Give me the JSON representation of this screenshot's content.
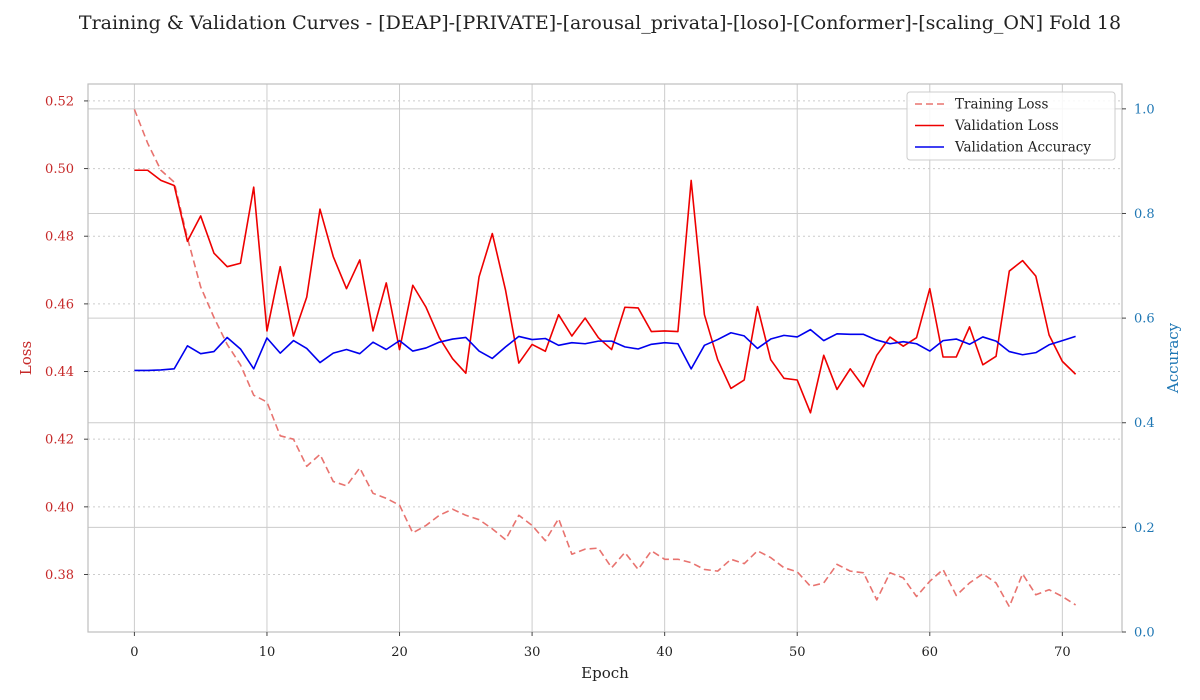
{
  "chart_data": {
    "type": "line",
    "title": "Training & Validation Curves - [DEAP]-[PRIVATE]-[arousal_privata]-[loso]-[Conformer]-[scaling_ON] Fold 18",
    "xlabel": "Epoch",
    "ylabel_left": "Loss",
    "ylabel_right": "Accuracy",
    "xlim": [
      -3.5,
      74.5
    ],
    "ylim_left": [
      0.363,
      0.525
    ],
    "ylim_right": [
      0.0,
      1.0475
    ],
    "x_ticks": [
      0,
      10,
      20,
      30,
      40,
      50,
      60,
      70
    ],
    "y_left_ticks": [
      "0.38",
      "0.40",
      "0.42",
      "0.44",
      "0.46",
      "0.48",
      "0.50",
      "0.52"
    ],
    "y_right_ticks": [
      "0.0",
      "0.2",
      "0.4",
      "0.6",
      "0.8",
      "1.0"
    ],
    "grid": true,
    "legend_position": "top-right",
    "colors": {
      "training_loss": "#e8736f",
      "validation_loss": "#ee0000",
      "validation_accuracy": "#0000ee",
      "left_axis": "#c62828",
      "right_axis": "#1f77b4",
      "grid": "#cccccc",
      "frame": "#bfbfbf"
    },
    "x": [
      0,
      1,
      2,
      3,
      4,
      5,
      6,
      7,
      8,
      9,
      10,
      11,
      12,
      13,
      14,
      15,
      16,
      17,
      18,
      19,
      20,
      21,
      22,
      23,
      24,
      25,
      26,
      27,
      28,
      29,
      30,
      31,
      32,
      33,
      34,
      35,
      36,
      37,
      38,
      39,
      40,
      41,
      42,
      43,
      44,
      45,
      46,
      47,
      48,
      49,
      50,
      51,
      52,
      53,
      54,
      55,
      56,
      57,
      58,
      59,
      60,
      61,
      62,
      63,
      64,
      65,
      66,
      67,
      68,
      69,
      70,
      71
    ],
    "series": [
      {
        "name": "Training Loss",
        "axis": "left",
        "style": "dashed",
        "values": [
          0.5175,
          0.5075,
          0.4995,
          0.496,
          0.4795,
          0.465,
          0.456,
          0.448,
          0.442,
          0.433,
          0.431,
          0.421,
          0.42,
          0.412,
          0.4155,
          0.4075,
          0.4062,
          0.4115,
          0.404,
          0.4025,
          0.4005,
          0.3923,
          0.3945,
          0.3975,
          0.3993,
          0.3975,
          0.3962,
          0.3935,
          0.3903,
          0.3975,
          0.3945,
          0.39,
          0.3965,
          0.386,
          0.3875,
          0.3878,
          0.382,
          0.3865,
          0.3815,
          0.387,
          0.3845,
          0.3845,
          0.3835,
          0.3815,
          0.381,
          0.3845,
          0.3832,
          0.387,
          0.385,
          0.382,
          0.3808,
          0.3765,
          0.3775,
          0.383,
          0.381,
          0.3805,
          0.3725,
          0.3805,
          0.379,
          0.3735,
          0.378,
          0.3815,
          0.3738,
          0.3775,
          0.3802,
          0.3775,
          0.3705,
          0.3802,
          0.374,
          0.3755,
          0.3735,
          0.371
        ]
      },
      {
        "name": "Validation Loss",
        "axis": "left",
        "style": "solid",
        "values": [
          0.4995,
          0.4995,
          0.4965,
          0.495,
          0.4785,
          0.486,
          0.475,
          0.471,
          0.472,
          0.4945,
          0.452,
          0.471,
          0.4505,
          0.462,
          0.488,
          0.474,
          0.4645,
          0.473,
          0.452,
          0.4662,
          0.4465,
          0.4655,
          0.459,
          0.45,
          0.4438,
          0.4395,
          0.468,
          0.4808,
          0.464,
          0.4425,
          0.448,
          0.446,
          0.4568,
          0.4505,
          0.4558,
          0.45,
          0.4465,
          0.459,
          0.4588,
          0.4518,
          0.452,
          0.4518,
          0.4965,
          0.4568,
          0.4435,
          0.435,
          0.4375,
          0.4592,
          0.4435,
          0.438,
          0.4375,
          0.4278,
          0.4448,
          0.4347,
          0.4408,
          0.4355,
          0.4448,
          0.4502,
          0.4475,
          0.45,
          0.4645,
          0.4443,
          0.4443,
          0.4532,
          0.442,
          0.4445,
          0.4697,
          0.4728,
          0.4682,
          0.4508,
          0.443,
          0.4392
        ]
      },
      {
        "name": "Validation Accuracy",
        "axis": "right",
        "style": "solid",
        "values": [
          0.5,
          0.5,
          0.501,
          0.503,
          0.547,
          0.532,
          0.536,
          0.563,
          0.541,
          0.503,
          0.562,
          0.533,
          0.557,
          0.542,
          0.515,
          0.533,
          0.54,
          0.532,
          0.554,
          0.54,
          0.557,
          0.537,
          0.543,
          0.554,
          0.56,
          0.563,
          0.537,
          0.523,
          0.545,
          0.565,
          0.559,
          0.561,
          0.548,
          0.553,
          0.551,
          0.556,
          0.556,
          0.545,
          0.541,
          0.55,
          0.553,
          0.551,
          0.503,
          0.548,
          0.559,
          0.572,
          0.566,
          0.542,
          0.56,
          0.567,
          0.564,
          0.578,
          0.557,
          0.57,
          0.569,
          0.569,
          0.558,
          0.551,
          0.555,
          0.551,
          0.537,
          0.557,
          0.56,
          0.55,
          0.564,
          0.556,
          0.536,
          0.53,
          0.534,
          0.549,
          0.557,
          0.565
        ]
      }
    ]
  }
}
